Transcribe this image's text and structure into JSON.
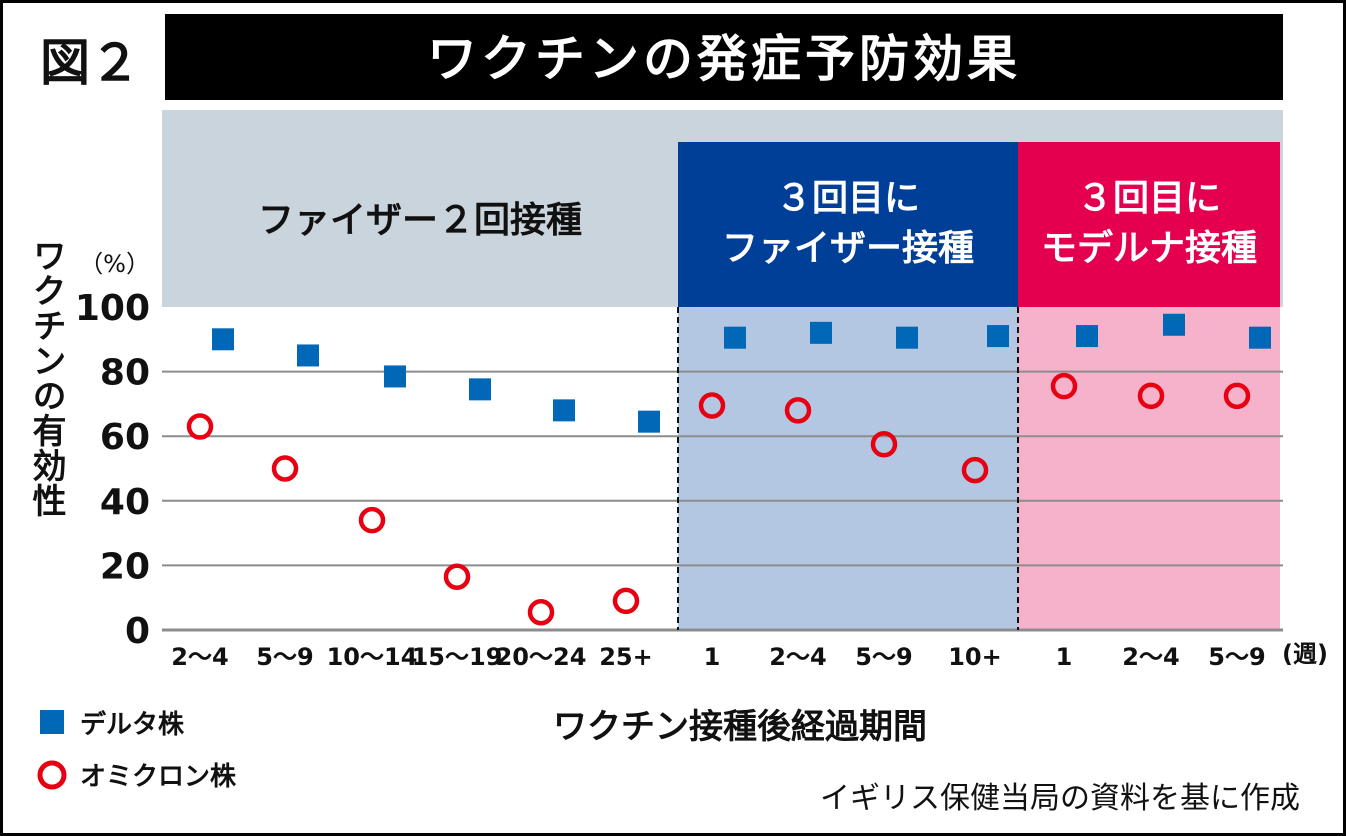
{
  "figure_label": "図２",
  "title": "ワクチンの発症予防効果",
  "colors": {
    "delta": "#0068b7",
    "omicron": "#e60012",
    "header_gray": "#c9d4dc",
    "pfizer_booster_header": "#003f98",
    "moderna_booster_header": "#e4004f",
    "pfizer_booster_bg": "#b3c7e3",
    "moderna_booster_bg": "#f6b2cb"
  },
  "chart_data": {
    "type": "scatter",
    "title": "ワクチンの発症予防効果",
    "ylabel": "ワクチンの有効性",
    "yunit": "（%）",
    "xlabel": "ワクチン接種後経過期間",
    "xunit": "(週)",
    "ylim": [
      0,
      100
    ],
    "yticks": [
      0,
      20,
      40,
      60,
      80,
      100
    ],
    "grid": true,
    "groups": [
      {
        "label": "ファイザー２回接種",
        "categories": [
          "2～4",
          "5～9",
          "10～14",
          "15～19",
          "20～24",
          "25+"
        ]
      },
      {
        "label": "３回目に\nファイザー接種",
        "label_lines": [
          "３回目に",
          "ファイザー接種"
        ],
        "categories": [
          "1",
          "2～4",
          "5～9",
          "10+"
        ]
      },
      {
        "label": "３回目に\nモデルナ接種",
        "label_lines": [
          "３回目に",
          "モデルナ接種"
        ],
        "categories": [
          "1",
          "2～4",
          "5～9"
        ]
      }
    ],
    "categories": [
      "2～4",
      "5～9",
      "10～14",
      "15～19",
      "20～24",
      "25+",
      "1",
      "2～4",
      "5～9",
      "10+",
      "1",
      "2～4",
      "5～9"
    ],
    "series": [
      {
        "name": "デルタ株",
        "marker": "square",
        "values": [
          90,
          85,
          78.5,
          74.5,
          68,
          64.5,
          90.5,
          92,
          90.5,
          91,
          91,
          94.5,
          90.5
        ]
      },
      {
        "name": "オミクロン株",
        "marker": "circle",
        "values": [
          63,
          50,
          34,
          16.5,
          5.5,
          9,
          69.5,
          68,
          57.5,
          49.5,
          75.5,
          72.5,
          72.5
        ]
      }
    ],
    "legend_position": "bottom-left"
  },
  "source": "イギリス保健当局の資料を基に作成"
}
